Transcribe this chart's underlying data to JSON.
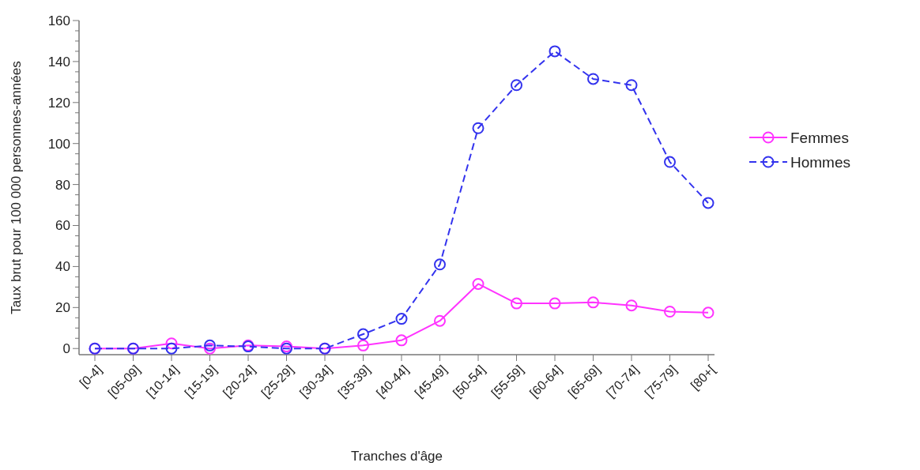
{
  "chart_data": {
    "type": "line",
    "xlabel": "Tranches d'âge",
    "ylabel": "Taux brut pour 100 000 personnes-années",
    "categories": [
      "[0-4]",
      "[05-09]",
      "[10-14]",
      "[15-19]",
      "[20-24]",
      "[25-29]",
      "[30-34]",
      "[35-39]",
      "[40-44]",
      "[45-49]",
      "[50-54]",
      "[55-59]",
      "[60-64]",
      "[65-69]",
      "[70-74]",
      "[75-79]",
      "[80+["
    ],
    "series": [
      {
        "name": "Femmes",
        "color": "#ff33ff",
        "line_style": "solid",
        "values": [
          0,
          0,
          2.5,
          0,
          1.5,
          1,
          0,
          1.5,
          4,
          13.5,
          31.5,
          22,
          22,
          22.5,
          21,
          18,
          17.5
        ]
      },
      {
        "name": "Hommes",
        "color": "#3333ee",
        "line_style": "dashed",
        "values": [
          0,
          0,
          0,
          1.5,
          1,
          0,
          0,
          7,
          14.5,
          41,
          107.5,
          128.5,
          145,
          131.5,
          128.5,
          91,
          71
        ]
      }
    ],
    "ylim": [
      -3,
      160
    ],
    "yticks": [
      0,
      {
        "value": 5,
        "label": null
      },
      {
        "value": 10,
        "label": null
      },
      {
        "value": 15,
        "label": null
      },
      20,
      {
        "value": 25,
        "label": null
      },
      {
        "value": 30,
        "label": null
      },
      {
        "value": 35,
        "label": null
      },
      40,
      {
        "value": 45,
        "label": null
      },
      {
        "value": 50,
        "label": null
      },
      {
        "value": 55,
        "label": null
      },
      60,
      {
        "value": 65,
        "label": null
      },
      {
        "value": 70,
        "label": null
      },
      {
        "value": 75,
        "label": null
      },
      80,
      {
        "value": 85,
        "label": null
      },
      {
        "value": 90,
        "label": null
      },
      {
        "value": 95,
        "label": null
      },
      100,
      {
        "value": 105,
        "label": null
      },
      {
        "value": 110,
        "label": null
      },
      {
        "value": 115,
        "label": null
      },
      120,
      {
        "value": 125,
        "label": null
      },
      {
        "value": 130,
        "label": null
      },
      {
        "value": 135,
        "label": null
      },
      140,
      {
        "value": 145,
        "label": null
      },
      {
        "value": 150,
        "label": null
      },
      {
        "value": 155,
        "label": null
      },
      160
    ],
    "marker": "circle",
    "legend": "right",
    "grid": false
  }
}
